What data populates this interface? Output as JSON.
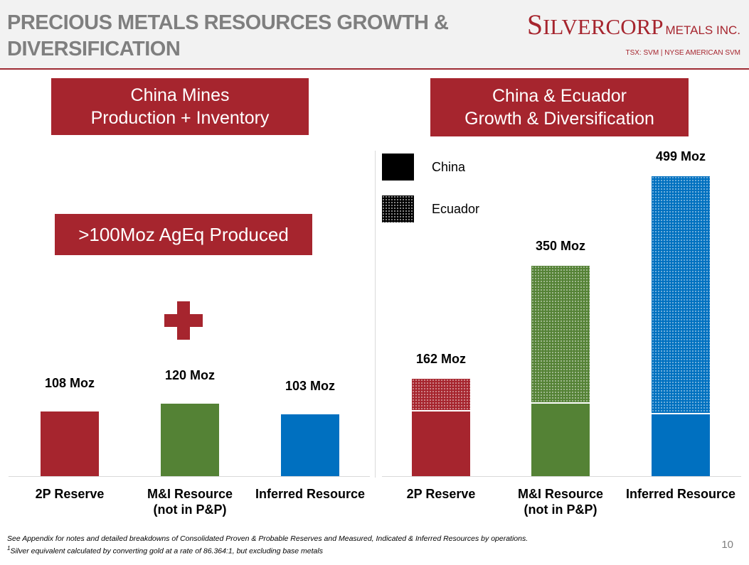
{
  "header": {
    "title": "PRECIOUS METALS RESOURCES GROWTH & DIVERSIFICATION",
    "logo_name_s": "S",
    "logo_name_rest": "ILVERCORP",
    "logo_name_sub": "METALS INC.",
    "logo_tagline": "TSX: SVM | NYSE AMERICAN SVM"
  },
  "left_panel": {
    "heading_line1": "China Mines",
    "heading_line2": "Production + Inventory",
    "produced_label": ">100Moz AgEq Produced"
  },
  "right_panel": {
    "heading_line1": "China & Ecuador",
    "heading_line2": "Growth & Diversification",
    "legend": [
      {
        "label": "China",
        "swatch": "#000000"
      },
      {
        "label": "Ecuador",
        "swatch": "patterned"
      }
    ]
  },
  "colors": {
    "brand_red": "#a6252e",
    "reserve_red": "#a6252e",
    "resource_green": "#548235",
    "inferred_blue": "#0070c0"
  },
  "chart_data": [
    {
      "type": "bar",
      "title": "China Mines Production + Inventory",
      "categories": [
        "2P Reserve",
        "M&I Resource\n(not in P&P)",
        "Inferred Resource"
      ],
      "values": [
        108,
        120,
        103
      ],
      "value_labels": [
        "108 Moz",
        "120 Moz",
        "103 Moz"
      ],
      "unit": "Moz",
      "bar_colors": [
        "#a6252e",
        "#548235",
        "#0070c0"
      ],
      "ylim": [
        0,
        520
      ],
      "grid": false
    },
    {
      "type": "bar",
      "stacked": true,
      "title": "China & Ecuador Growth & Diversification",
      "categories": [
        "2P Reserve",
        "M&I Resource\n(not in P&P)",
        "Inferred Resource"
      ],
      "totals": [
        162,
        350,
        499
      ],
      "total_labels": [
        "162 Moz",
        "350 Moz",
        "499 Moz"
      ],
      "series": [
        {
          "name": "China",
          "values": [
            108,
            120,
            103
          ]
        },
        {
          "name": "Ecuador",
          "values": [
            54,
            230,
            396
          ]
        }
      ],
      "unit": "Moz",
      "bar_colors": [
        "#a6252e",
        "#548235",
        "#0070c0"
      ],
      "legend_position": "top-left",
      "ylim": [
        0,
        520
      ],
      "grid": false
    }
  ],
  "footnote_text": "See Appendix for notes and detailed breakdowns of Consolidated Proven & Probable Reserves and Measured, Indicated & Inferred Resources by operations.",
  "footnote_sup": "1",
  "footnote_text2": "Silver equivalent calculated by converting gold at a rate of 86.364:1, but excluding base metals",
  "page_number": "10"
}
